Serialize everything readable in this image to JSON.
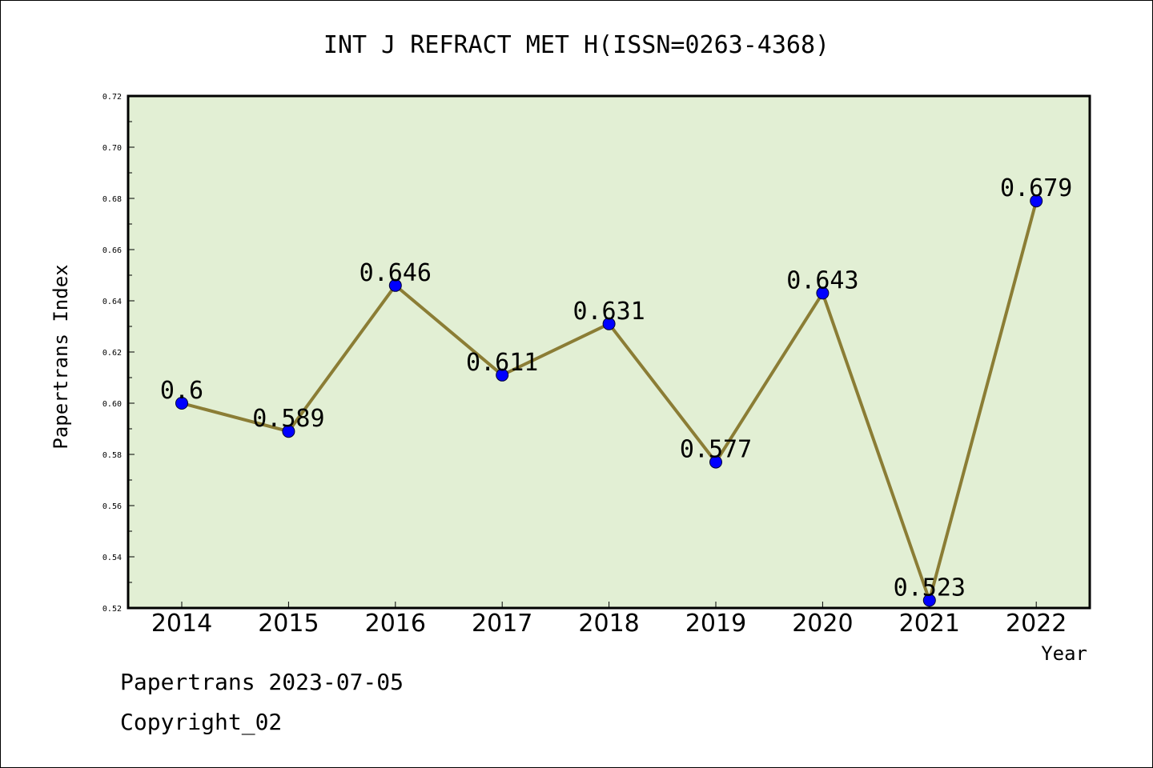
{
  "chart_data": {
    "type": "line",
    "title": "INT J REFRACT MET H(ISSN=0263-4368)",
    "xlabel": "Year",
    "ylabel": "Papertrans Index",
    "categories": [
      "2014",
      "2015",
      "2016",
      "2017",
      "2018",
      "2019",
      "2020",
      "2021",
      "2022"
    ],
    "series": [
      {
        "values": [
          0.6,
          0.589,
          0.646,
          0.611,
          0.631,
          0.577,
          0.643,
          0.523,
          0.679
        ]
      }
    ],
    "data_labels": [
      "0.6",
      "0.589",
      "0.646",
      "0.611",
      "0.631",
      "0.577",
      "0.643",
      "0.523",
      "0.679"
    ],
    "ylim": [
      0.52,
      0.72
    ],
    "yticks": [
      "0.52",
      "0.54",
      "0.56",
      "0.58",
      "0.60",
      "0.62",
      "0.64",
      "0.66",
      "0.68",
      "0.70",
      "0.72"
    ],
    "grid": false,
    "colors": {
      "plot_background": "#e2efd4",
      "line": "#8b7d35",
      "marker": "#0000ff"
    }
  },
  "footer": {
    "line1": "Papertrans 2023-07-05",
    "line2": "Copyright_02"
  }
}
